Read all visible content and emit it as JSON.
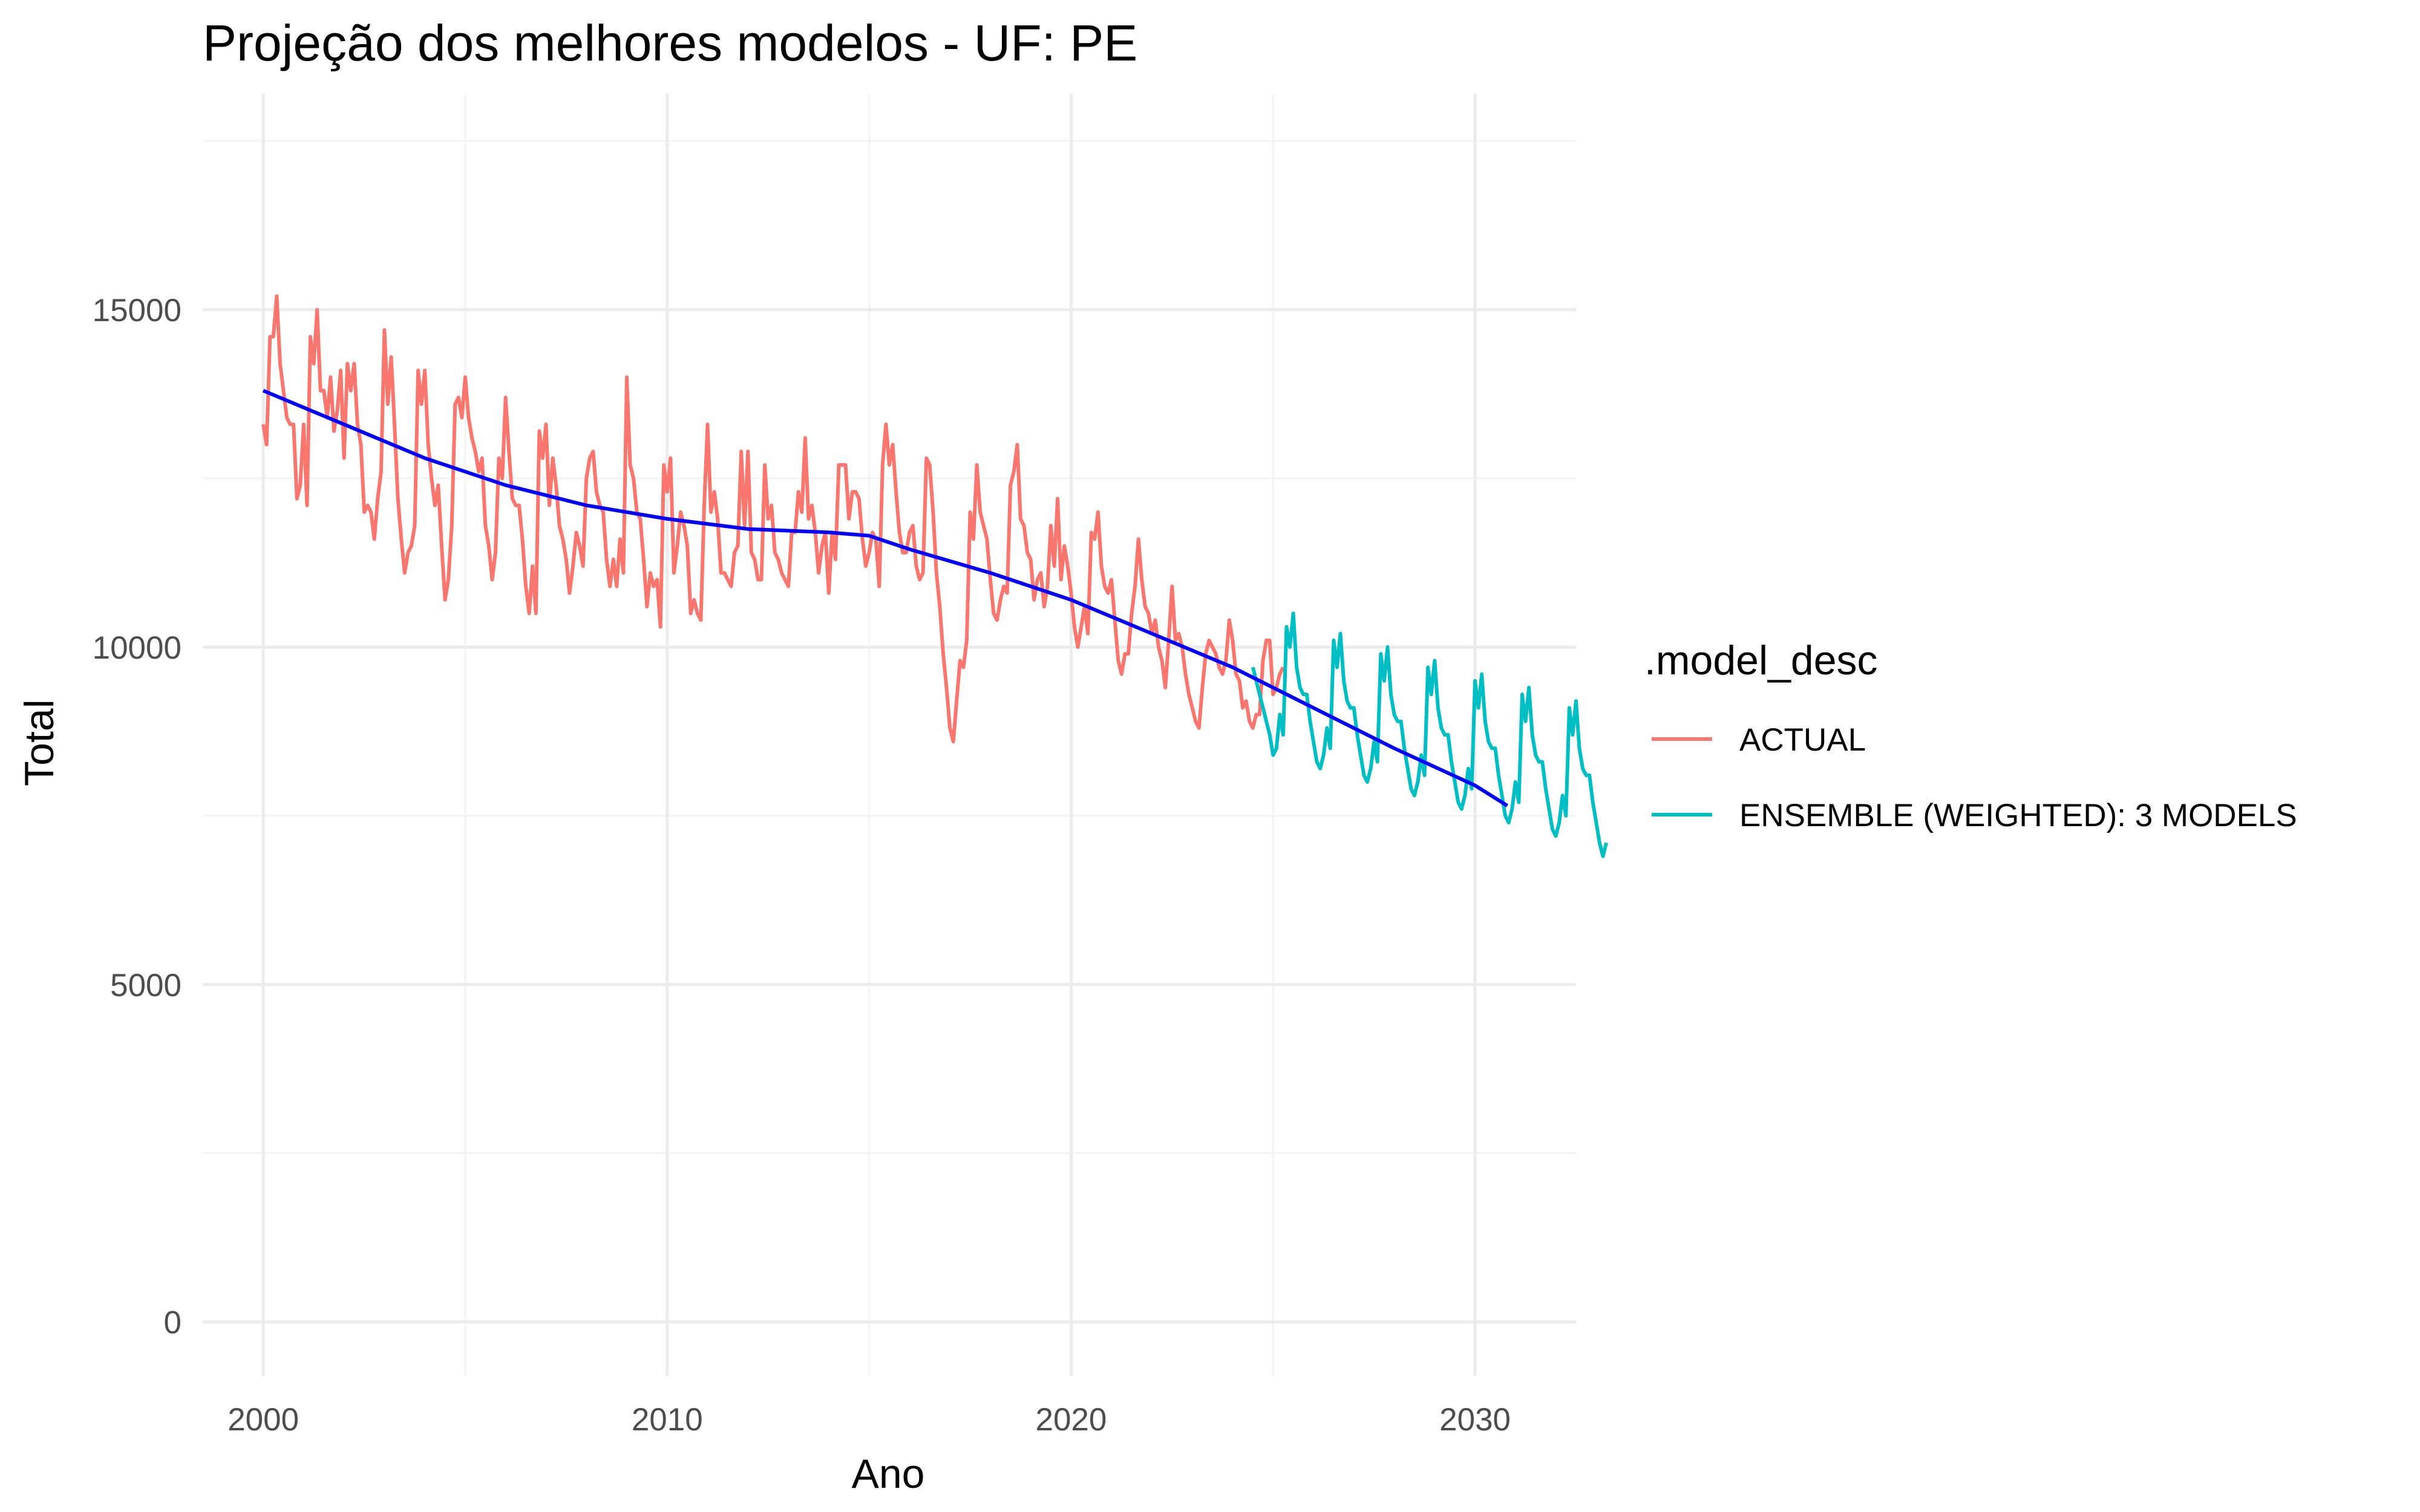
{
  "chart_data": {
    "type": "line",
    "title": "Projeção dos melhores modelos - UF: PE",
    "xlabel": "Ano",
    "ylabel": "Total",
    "xlim": [
      1998.5,
      2032.5
    ],
    "ylim": [
      -800,
      18200
    ],
    "x_ticks": [
      2000,
      2010,
      2020,
      2030
    ],
    "y_ticks": [
      0,
      5000,
      10000,
      15000
    ],
    "grid": true,
    "legend": {
      "title": ".model_desc",
      "position": "right",
      "entries": [
        {
          "label": "ACTUAL",
          "color": "#F8766D"
        },
        {
          "label": "ENSEMBLE (WEIGHTED): 3 MODELS",
          "color": "#00BFC4"
        }
      ]
    },
    "series": [
      {
        "name": "ACTUAL",
        "color": "#F8766D",
        "x_start": 2000.0,
        "x_step": 0.08333,
        "values": [
          13300,
          13000,
          14600,
          14600,
          15200,
          14200,
          13800,
          13400,
          13300,
          13300,
          12200,
          12400,
          13300,
          12100,
          14600,
          14200,
          15000,
          13800,
          13800,
          13400,
          14000,
          13200,
          13500,
          14100,
          12800,
          14200,
          13800,
          14200,
          13300,
          13000,
          12000,
          12100,
          12000,
          11600,
          12200,
          12600,
          14700,
          13600,
          14300,
          13300,
          12200,
          11600,
          11100,
          11400,
          11500,
          11800,
          14100,
          13600,
          14100,
          13000,
          12500,
          12100,
          12400,
          11500,
          10700,
          11000,
          11800,
          13600,
          13700,
          13400,
          14000,
          13400,
          13100,
          12900,
          12600,
          12800,
          11800,
          11500,
          11000,
          11400,
          12800,
          12500,
          13700,
          12900,
          12200,
          12100,
          12100,
          11600,
          10900,
          10500,
          11200,
          10500,
          13200,
          12800,
          13300,
          12100,
          12800,
          12400,
          11800,
          11600,
          11300,
          10800,
          11200,
          11700,
          11500,
          11200,
          12500,
          12800,
          12900,
          12300,
          12100,
          12000,
          11300,
          10900,
          11300,
          10900,
          11600,
          11100,
          14000,
          12700,
          12500,
          12000,
          11900,
          11300,
          10600,
          11100,
          10900,
          11000,
          10300,
          12700,
          12300,
          12800,
          11100,
          11500,
          12000,
          11800,
          11500,
          10500,
          10700,
          10500,
          10400,
          12100,
          13300,
          12000,
          12300,
          11900,
          11100,
          11100,
          11000,
          10900,
          11400,
          11500,
          12900,
          11800,
          12900,
          11400,
          11300,
          11000,
          11000,
          12700,
          11900,
          12100,
          11400,
          11300,
          11100,
          11000,
          10900,
          11700,
          11700,
          12300,
          12000,
          13100,
          11900,
          12100,
          11700,
          11100,
          11500,
          11700,
          10800,
          11700,
          11300,
          12700,
          12700,
          12700,
          11900,
          12300,
          12300,
          12200,
          11600,
          11200,
          11400,
          11700,
          11600,
          10900,
          12700,
          13300,
          12700,
          13000,
          12300,
          11700,
          11400,
          11400,
          11700,
          11800,
          11200,
          11000,
          11100,
          12800,
          12700,
          12000,
          11100,
          10600,
          9900,
          9400,
          8800,
          8600,
          9200,
          9800,
          9700,
          10100,
          12000,
          11600,
          12700,
          12000,
          11800,
          11600,
          11000,
          10500,
          10400,
          10700,
          10900,
          10800,
          12400,
          12600,
          13000,
          11900,
          11800,
          11400,
          11300,
          10700,
          11000,
          11100,
          10600,
          10900,
          11800,
          11200,
          12200,
          11000,
          11500,
          11200,
          10800,
          10300,
          10000,
          10300,
          10600,
          10200,
          11700,
          11600,
          12000,
          11200,
          10900,
          10800,
          11000,
          10400,
          9800,
          9600,
          9900,
          9900,
          10500,
          10900,
          11600,
          11000,
          10600,
          10500,
          10200,
          10400,
          10000,
          9800,
          9400,
          10100,
          10900,
          10100,
          10200,
          10000,
          9600,
          9300,
          9100,
          8900,
          8800,
          9400,
          9900,
          10100,
          10000,
          9900,
          9700,
          9600,
          9800,
          10400,
          10100,
          9600,
          9500,
          9100,
          9200,
          8900,
          8800,
          9000,
          9000,
          9800,
          10100,
          10100,
          9300,
          9400,
          9600,
          9700
        ]
      },
      {
        "name": "ENSEMBLE (WEIGHTED): 3 MODELS",
        "color": "#00BFC4",
        "x_start": 2024.5,
        "x_step": 0.08333,
        "values": [
          9700,
          9500,
          9300,
          9100,
          8900,
          8700,
          8400,
          8500,
          9000,
          8700,
          10300,
          10000,
          10500,
          9700,
          9400,
          9300,
          9300,
          8900,
          8600,
          8300,
          8200,
          8400,
          8800,
          8500,
          10100,
          9700,
          10200,
          9500,
          9200,
          9100,
          9100,
          8700,
          8400,
          8100,
          8000,
          8200,
          8600,
          8300,
          9900,
          9500,
          10000,
          9300,
          9000,
          8900,
          8900,
          8500,
          8200,
          7900,
          7800,
          8000,
          8400,
          8100,
          9700,
          9300,
          9800,
          9100,
          8800,
          8700,
          8700,
          8300,
          8000,
          7700,
          7600,
          7800,
          8200,
          7900,
          9500,
          9100,
          9600,
          8900,
          8600,
          8500,
          8500,
          8100,
          7800,
          7500,
          7400,
          7600,
          8000,
          7700,
          9300,
          8900,
          9400,
          8700,
          8400,
          8300,
          8300,
          7900,
          7600,
          7300,
          7200,
          7400,
          7800,
          7500,
          9100,
          8700,
          9200,
          8500,
          8200,
          8100,
          8100,
          7700,
          7400,
          7100,
          6900,
          7100
        ]
      },
      {
        "name": "",
        "color": "#0000FF",
        "x": [
          2000,
          2002,
          2004,
          2006,
          2008,
          2010,
          2012,
          2014,
          2015,
          2016,
          2018,
          2020,
          2022,
          2024,
          2026,
          2028,
          2030,
          2030.8
        ],
        "values": [
          13800,
          13300,
          12800,
          12400,
          12100,
          11900,
          11750,
          11700,
          11650,
          11450,
          11100,
          10700,
          10200,
          9700,
          9100,
          8500,
          7950,
          7650
        ]
      }
    ]
  }
}
